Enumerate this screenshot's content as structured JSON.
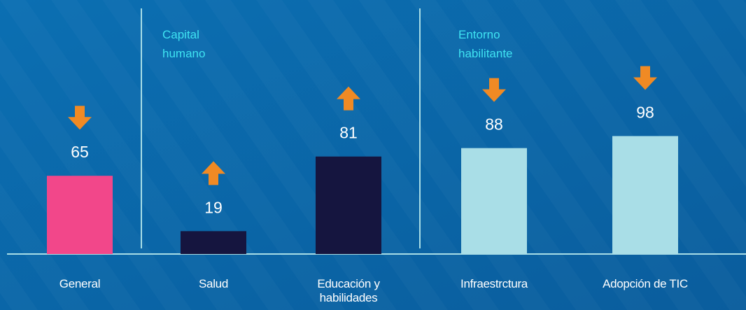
{
  "chart_data": {
    "type": "bar",
    "categories": [
      "General",
      "Salud",
      "Educación y habilidades",
      "Infraestrctura",
      "Adopción de TIC"
    ],
    "values": [
      65,
      19,
      81,
      88,
      98
    ],
    "colors": [
      "#f2478a",
      "#15153f",
      "#15153f",
      "#a9dee7",
      "#a9dee7"
    ],
    "arrows": [
      "down",
      "up",
      "up",
      "down",
      "down"
    ],
    "arrow_color": "#f08a24",
    "annotations": [
      "Capital humano",
      "Entorno habilitante"
    ]
  }
}
